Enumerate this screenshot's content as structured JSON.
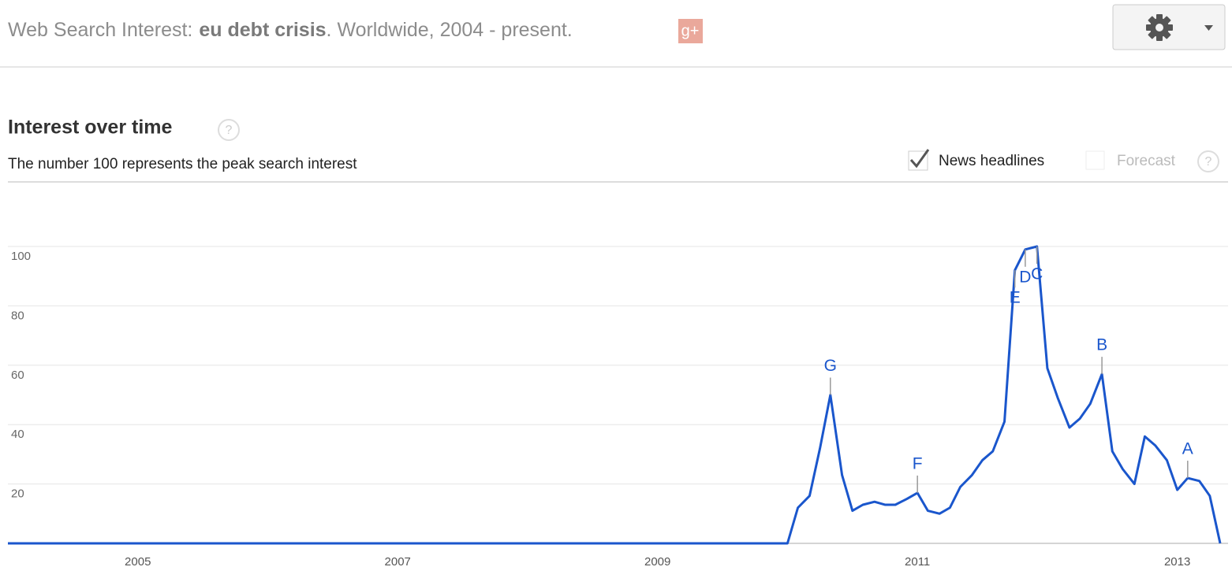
{
  "header": {
    "prefix": "Web Search Interest:",
    "query": "eu debt crisis",
    "scope": ". Worldwide, 2004 - present.",
    "share_icon": "g+"
  },
  "controls": {
    "news_headlines": "News headlines",
    "news_headlines_checked": true,
    "forecast": "Forecast",
    "forecast_checked": false,
    "help_icon": "?"
  },
  "chart_data": {
    "type": "line",
    "title": "Interest over time",
    "subtitle": "The number 100 represents the peak search interest",
    "x": [
      2004,
      2010,
      2010.08,
      2010.17,
      2010.25,
      2010.33,
      2010.42,
      2010.5,
      2010.58,
      2010.67,
      2010.75,
      2010.83,
      2010.92,
      2011,
      2011.08,
      2011.17,
      2011.25,
      2011.33,
      2011.42,
      2011.5,
      2011.58,
      2011.67,
      2011.75,
      2011.83,
      2011.92,
      2012,
      2012.08,
      2012.17,
      2012.25,
      2012.33,
      2012.42,
      2012.5,
      2012.58,
      2012.67,
      2012.75,
      2012.83,
      2012.92,
      2013,
      2013.08,
      2013.17,
      2013.25,
      2013.33
    ],
    "values": [
      0,
      0,
      12,
      16,
      32,
      50,
      23,
      11,
      13,
      14,
      13,
      13,
      15,
      17,
      11,
      10,
      12,
      19,
      23,
      28,
      31,
      41,
      92,
      99,
      100,
      59,
      49,
      39,
      42,
      47,
      57,
      31,
      25,
      20,
      36,
      33,
      28,
      18,
      22,
      21,
      16,
      0
    ],
    "color": "#1a56cc",
    "xlim": [
      2004,
      2013.33
    ],
    "xticks": [
      2005,
      2007,
      2009,
      2011,
      2013
    ],
    "ylim": [
      0,
      100
    ],
    "yticks": [
      20,
      40,
      60,
      80,
      100
    ],
    "grid": true,
    "annotations": [
      {
        "label": "G",
        "x": 2010.33
      },
      {
        "label": "F",
        "x": 2011
      },
      {
        "label": "E",
        "x": 2011.75
      },
      {
        "label": "D",
        "x": 2011.83
      },
      {
        "label": "C",
        "x": 2011.92
      },
      {
        "label": "B",
        "x": 2012.42
      },
      {
        "label": "A",
        "x": 2013.08
      }
    ]
  }
}
